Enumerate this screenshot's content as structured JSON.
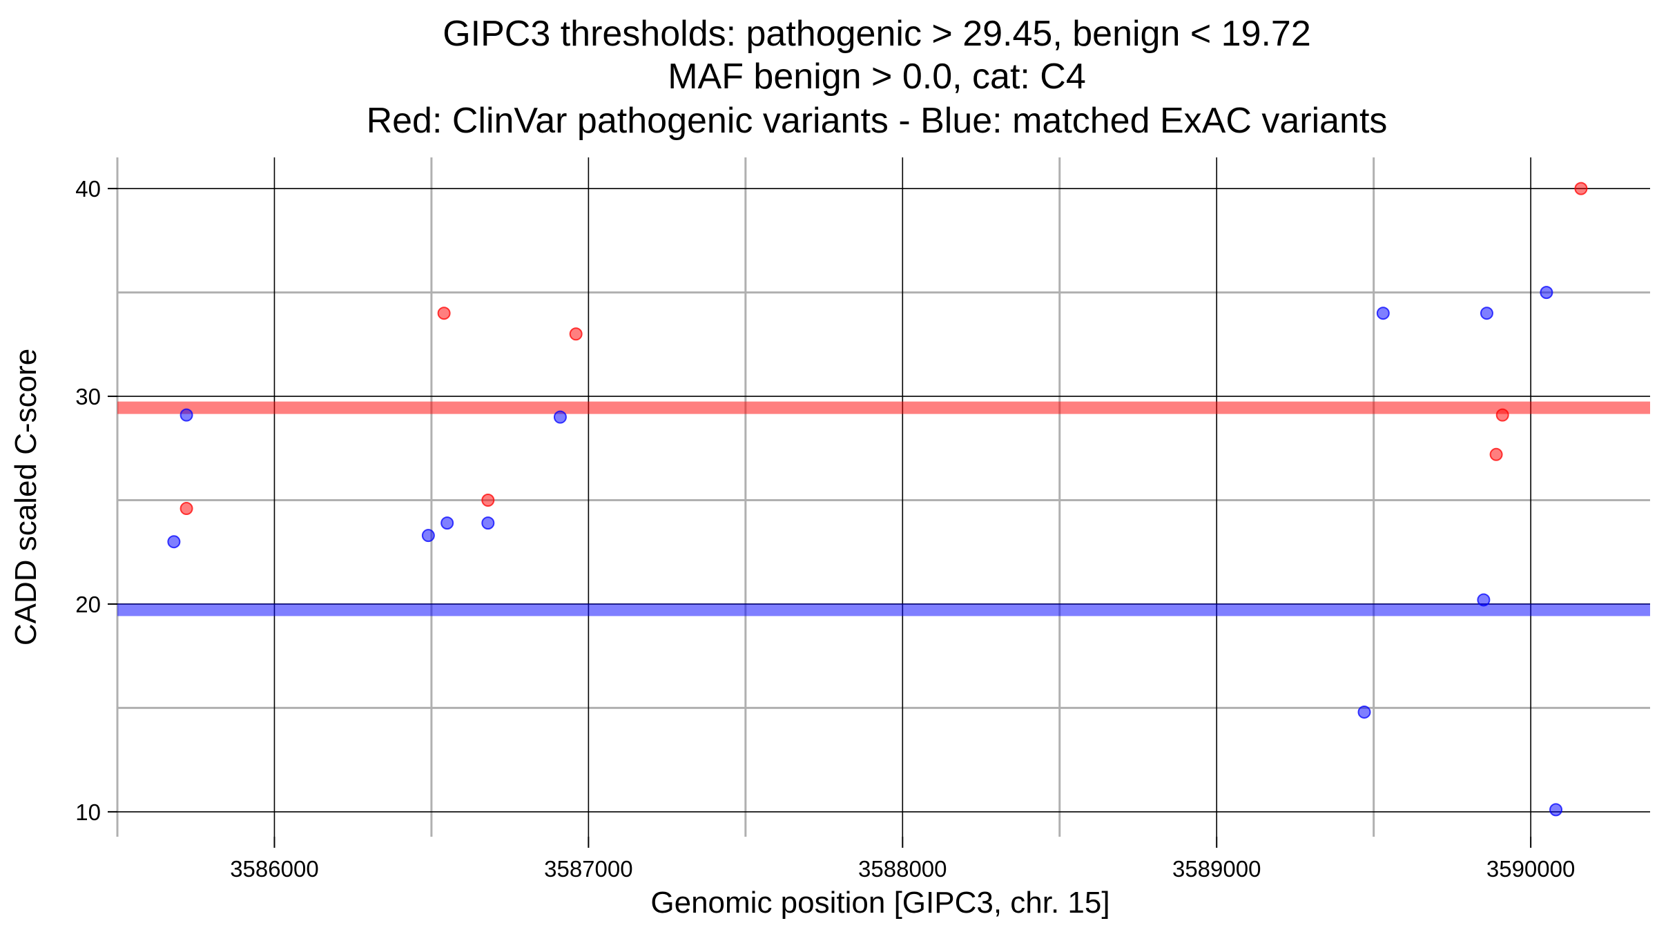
{
  "chart_data": {
    "type": "scatter",
    "title_lines": [
      "GIPC3 thresholds: pathogenic > 29.45, benign < 19.72",
      "MAF benign > 0.0, cat: C4",
      "Red: ClinVar pathogenic variants - Blue: matched ExAC variants"
    ],
    "xlabel": "Genomic position [GIPC3, chr. 15]",
    "ylabel": "CADD scaled C-score",
    "xlim": [
      3585500,
      3590380
    ],
    "ylim": [
      8.8,
      41.5
    ],
    "x_major_ticks": [
      3586000,
      3587000,
      3588000,
      3589000,
      3590000
    ],
    "x_minor_ticks": [
      3585500,
      3586500,
      3587500,
      3588500,
      3589500
    ],
    "y_major_ticks": [
      10,
      20,
      30,
      40
    ],
    "y_minor_ticks": [
      15,
      25,
      35
    ],
    "x_tick_labels": [
      "3586000",
      "3587000",
      "3588000",
      "3589000",
      "3590000"
    ],
    "y_tick_labels": [
      "10",
      "20",
      "30",
      "40"
    ],
    "grid": true,
    "colors": {
      "pathogenic": "#ff0000",
      "benign": "#0000ff",
      "major_grid": "#000000",
      "minor_grid": "#b0b0b0"
    },
    "thresholds": [
      {
        "value": 29.45,
        "color": "#ff0000"
      },
      {
        "value": 19.72,
        "color": "#0000ff"
      }
    ],
    "series": [
      {
        "color": "#ff0000",
        "points": [
          {
            "x": 3585720,
            "y": 24.6
          },
          {
            "x": 3586540,
            "y": 34.0
          },
          {
            "x": 3586680,
            "y": 25.0
          },
          {
            "x": 3586960,
            "y": 33.0
          },
          {
            "x": 3589890,
            "y": 27.2
          },
          {
            "x": 3589910,
            "y": 29.1
          },
          {
            "x": 3590160,
            "y": 40.0
          }
        ]
      },
      {
        "color": "#0000ff",
        "points": [
          {
            "x": 3585680,
            "y": 23.0
          },
          {
            "x": 3585720,
            "y": 29.1
          },
          {
            "x": 3586490,
            "y": 23.3
          },
          {
            "x": 3586550,
            "y": 23.9
          },
          {
            "x": 3586680,
            "y": 23.9
          },
          {
            "x": 3586910,
            "y": 29.0
          },
          {
            "x": 3589470,
            "y": 14.8
          },
          {
            "x": 3589530,
            "y": 34.0
          },
          {
            "x": 3589850,
            "y": 20.2
          },
          {
            "x": 3589860,
            "y": 34.0
          },
          {
            "x": 3590050,
            "y": 35.0
          },
          {
            "x": 3590080,
            "y": 10.1
          }
        ]
      }
    ]
  }
}
